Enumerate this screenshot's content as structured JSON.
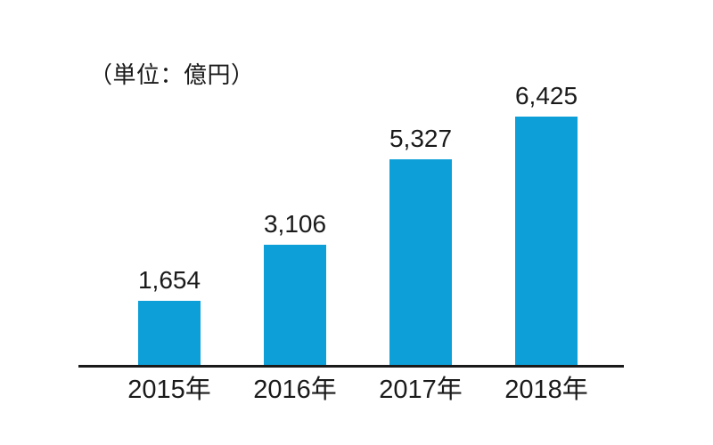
{
  "unit_label": "（単位：億円）",
  "colors": {
    "bar": "#0d9fd8",
    "axis": "#1a1a1a",
    "text": "#1a1a1a",
    "background": "#ffffff"
  },
  "chart_data": {
    "type": "bar",
    "title": "",
    "unit_annotation": "（単位：億円）",
    "categories": [
      "2015年",
      "2016年",
      "2017年",
      "2018年"
    ],
    "values": [
      1654,
      3106,
      5327,
      6425
    ],
    "value_labels": [
      "1,654",
      "3,106",
      "5,327",
      "6,425"
    ],
    "xlabel": "",
    "ylabel": "億円",
    "ylim": [
      0,
      6425
    ],
    "grid": false,
    "legend": false,
    "bar_color": "#0d9fd8"
  }
}
